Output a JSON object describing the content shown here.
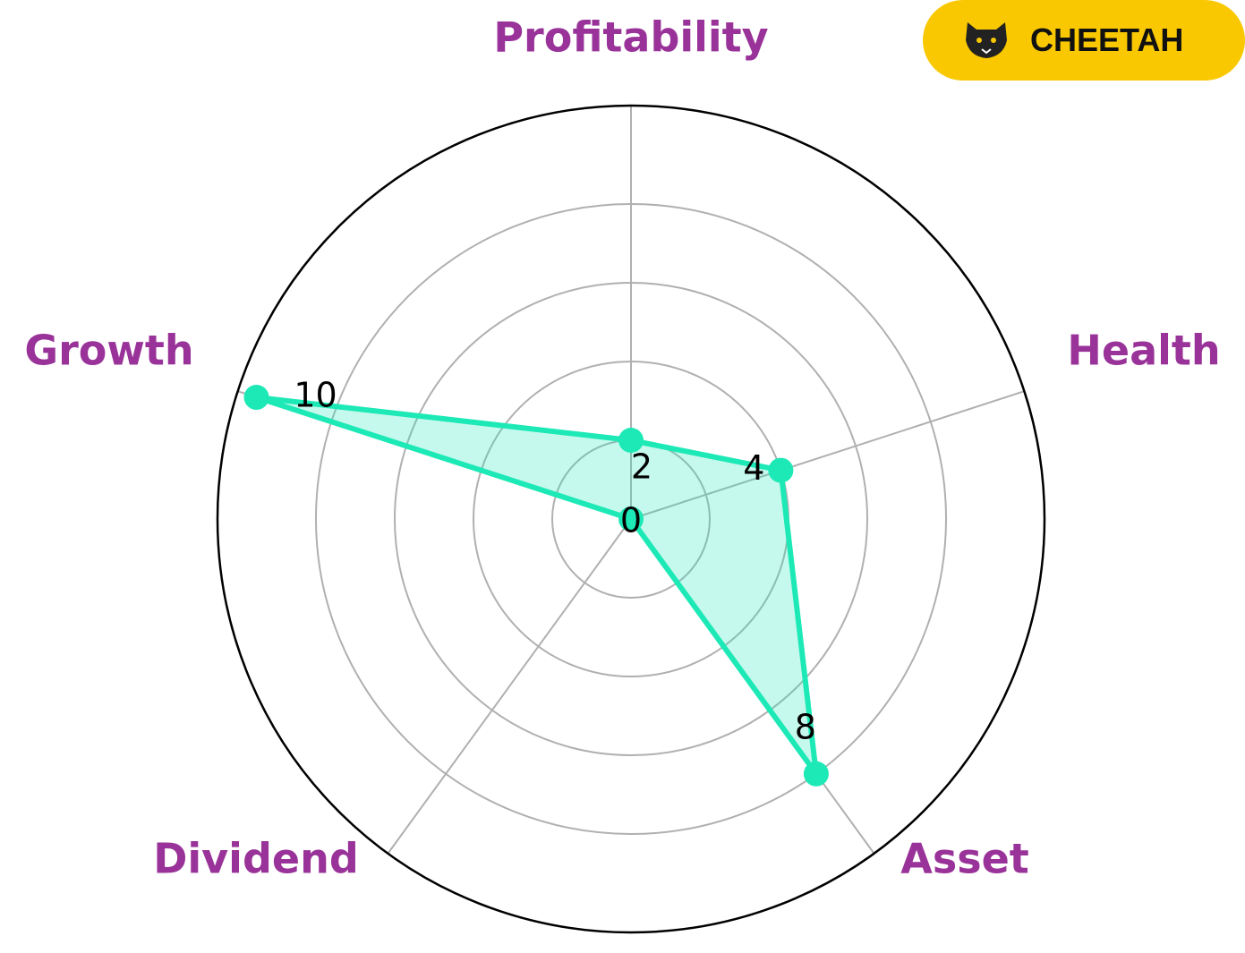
{
  "logo": "CHEETAH",
  "chart_data": {
    "type": "radar",
    "categories": [
      "Profitability",
      "Health",
      "Asset",
      "Dividend",
      "Growth"
    ],
    "values": [
      2,
      4,
      8,
      0,
      10
    ],
    "color": "#1de9b6",
    "ylim": [
      0,
      10.5
    ],
    "yticks": [
      2,
      4,
      6,
      8
    ],
    "grid": true
  }
}
